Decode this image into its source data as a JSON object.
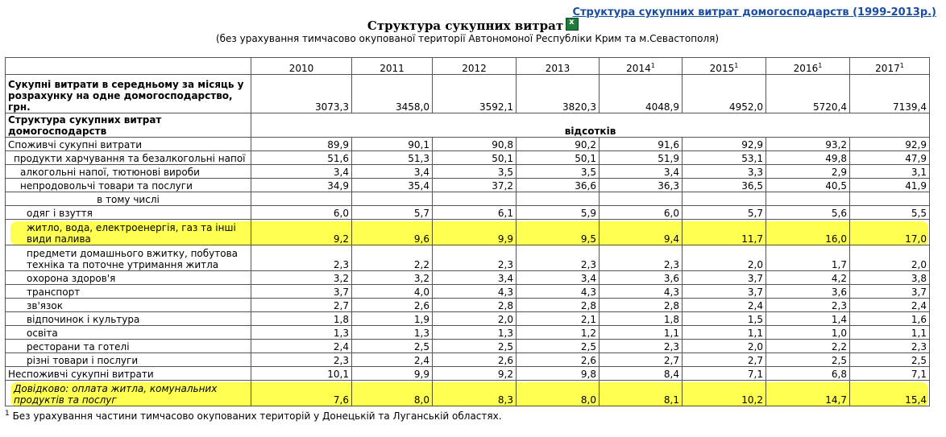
{
  "top_link": "Структура сукупних витрат домогосподарств (1999-2013р.)",
  "title": "Структура сукупних витрат",
  "subtitle": "(без урахування тимчасово окупованої території Автономоної Республіки Крим та м.Севастополя)",
  "years": [
    "2010",
    "2011",
    "2012",
    "2013",
    "2014",
    "2015",
    "2016",
    "2017"
  ],
  "year_sup": [
    "",
    "",
    "",
    "",
    "1",
    "1",
    "1",
    "1"
  ],
  "total_row": {
    "label": "Сукупні витрати в середньому за місяць у розрахунку на одне домогосподарство, грн.",
    "values": [
      "3073,3",
      "3458,0",
      "3592,1",
      "3820,3",
      "4048,9",
      "4952,0",
      "5720,4",
      "7139,4"
    ]
  },
  "structure_row": {
    "label": "Структура сукупних витрат домогосподарств",
    "unit": "відсотків"
  },
  "rows": [
    {
      "label": "Споживчі сукупні витрати",
      "values": [
        "89,9",
        "90,1",
        "90,8",
        "90,2",
        "91,6",
        "92,9",
        "93,2",
        "92,9"
      ]
    },
    {
      "label": "продукти харчування та безалкогольні напої",
      "values": [
        "51,6",
        "51,3",
        "50,1",
        "50,1",
        "51,9",
        "53,1",
        "49,8",
        "47,9"
      ]
    },
    {
      "label": "алкогольні напої, тютюнові вироби",
      "values": [
        "3,4",
        "3,4",
        "3,5",
        "3,5",
        "3,4",
        "3,3",
        "2,9",
        "3,1"
      ]
    },
    {
      "label": "непродовольчі товари та послуги",
      "values": [
        "34,9",
        "35,4",
        "37,2",
        "36,6",
        "36,3",
        "36,5",
        "40,5",
        "41,9"
      ]
    },
    {
      "label": "в тому числі",
      "values": [
        "",
        "",
        "",
        "",
        "",
        "",
        "",
        ""
      ]
    },
    {
      "label": "одяг і взуття",
      "values": [
        "6,0",
        "5,7",
        "6,1",
        "5,9",
        "6,0",
        "5,7",
        "5,6",
        "5,5"
      ]
    },
    {
      "label": "житло, вода, електроенергія, газ та інші види палива",
      "values": [
        "9,2",
        "9,6",
        "9,9",
        "9,5",
        "9,4",
        "11,7",
        "16,0",
        "17,0"
      ]
    },
    {
      "label": "предмети домашнього вжитку, побутова техніка та поточне утримання житла",
      "values": [
        "2,3",
        "2,2",
        "2,3",
        "2,3",
        "2,3",
        "2,0",
        "1,7",
        "2,0"
      ]
    },
    {
      "label": "охорона здоров'я",
      "values": [
        "3,2",
        "3,2",
        "3,4",
        "3,4",
        "3,6",
        "3,7",
        "4,2",
        "3,8"
      ]
    },
    {
      "label": "транспорт",
      "values": [
        "3,7",
        "4,0",
        "4,3",
        "4,3",
        "4,3",
        "3,7",
        "3,6",
        "3,7"
      ]
    },
    {
      "label": "зв'язок",
      "values": [
        "2,7",
        "2,6",
        "2,8",
        "2,8",
        "2,8",
        "2,4",
        "2,3",
        "2,4"
      ]
    },
    {
      "label": "відпочинок і культура",
      "values": [
        "1,8",
        "1,9",
        "2,0",
        "2,1",
        "1,8",
        "1,5",
        "1,4",
        "1,6"
      ]
    },
    {
      "label": "освіта",
      "values": [
        "1,3",
        "1,3",
        "1,3",
        "1,2",
        "1,1",
        "1,1",
        "1,0",
        "1,1"
      ]
    },
    {
      "label": "ресторани та готелі",
      "values": [
        "2,4",
        "2,5",
        "2,5",
        "2,5",
        "2,3",
        "2,0",
        "2,2",
        "2,3"
      ]
    },
    {
      "label": "різні товари і послуги",
      "values": [
        "2,3",
        "2,4",
        "2,6",
        "2,6",
        "2,7",
        "2,7",
        "2,5",
        "2,5"
      ]
    },
    {
      "label": "Неспоживчі сукупні витрати",
      "values": [
        "10,1",
        "9,9",
        "9,2",
        "9,8",
        "8,4",
        "7,1",
        "6,8",
        "7,1"
      ]
    },
    {
      "label": "Довідково: оплата житла, комунальних продуктів та послуг",
      "values": [
        "7,6",
        "8,0",
        "8,3",
        "8,0",
        "8,1",
        "10,2",
        "14,7",
        "15,4"
      ]
    }
  ],
  "footnote_sup": "1",
  "footnote": "Без урахування частини тимчасово окупованих територій у Донецькій та Луганській областях.",
  "highlight_color": "#ffff33"
}
